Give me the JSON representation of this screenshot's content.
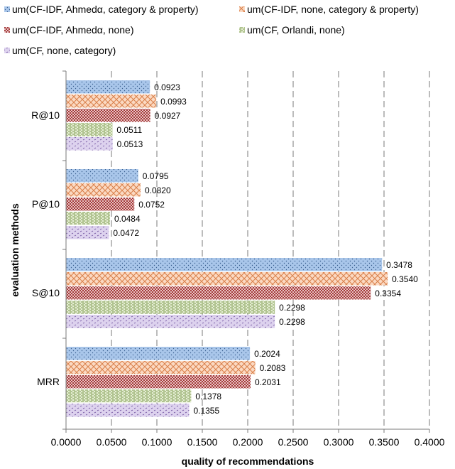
{
  "chart_data": {
    "type": "bar",
    "orientation": "horizontal",
    "title": "",
    "xlabel": "quality of recommendations",
    "ylabel": "evaluation methods",
    "xlim": [
      0,
      0.4
    ],
    "xticks": [
      "0.0000",
      "0.0500",
      "0.1000",
      "0.1500",
      "0.2000",
      "0.2500",
      "0.3000",
      "0.3500",
      "0.4000"
    ],
    "grid": "vertical dashed",
    "legend_position": "top",
    "categories": [
      "R@10",
      "P@10",
      "S@10",
      "MRR"
    ],
    "series": [
      {
        "name": "um(CF-IDF, Ahmedα, category & property)",
        "values": [
          0.0923,
          0.0795,
          0.3478,
          0.2024
        ],
        "labels": [
          "0.0923",
          "0.0795",
          "0.3478",
          "0.2024"
        ],
        "color": "#a9c6ea",
        "pattern": "dots"
      },
      {
        "name": "um(CF-IDF, none, category & property)",
        "values": [
          0.0993,
          0.082,
          0.354,
          0.2083
        ],
        "labels": [
          "0.0993",
          "0.0820",
          "0.3540",
          "0.2083"
        ],
        "color": "#f9c9a8",
        "pattern": "crosshatch"
      },
      {
        "name": "um(CF-IDF, Ahmedα, none)",
        "values": [
          0.0927,
          0.0752,
          0.3354,
          0.2031
        ],
        "labels": [
          "0.0927",
          "0.0752",
          "0.3354",
          "0.2031"
        ],
        "color": "#b45a5a",
        "pattern": "checker"
      },
      {
        "name": "um(CF, Orlandi, none)",
        "values": [
          0.0511,
          0.0484,
          0.2298,
          0.1378
        ],
        "labels": [
          "0.0511",
          "0.0484",
          "0.2298",
          "0.1378"
        ],
        "color": "#d4e2b8",
        "pattern": "hlines"
      },
      {
        "name": "um(CF, none, category)",
        "values": [
          0.0513,
          0.0472,
          0.2298,
          0.1355
        ],
        "labels": [
          "0.0513",
          "0.0472",
          "0.2298",
          "0.1355"
        ],
        "color": "#c8b8e0",
        "pattern": "dashes"
      }
    ]
  }
}
